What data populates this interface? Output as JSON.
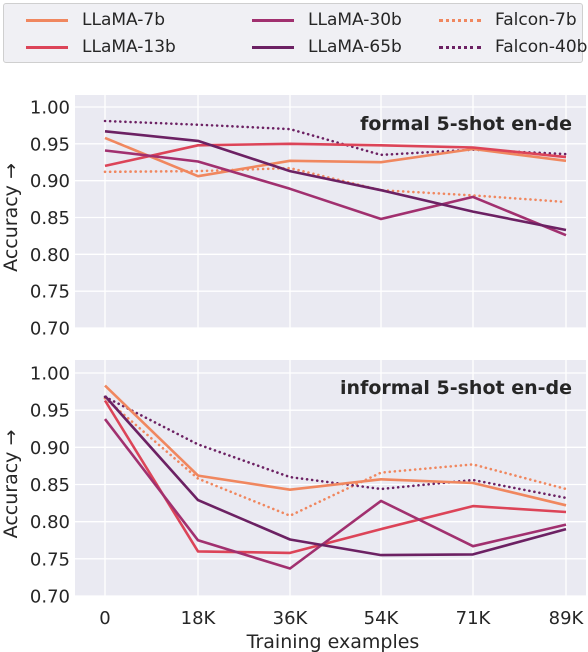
{
  "legend": [
    {
      "name": "LLaMA-7b",
      "color": "#f0875f",
      "dash": "solid"
    },
    {
      "name": "LLaMA-13b",
      "color": "#dc4458",
      "dash": "solid"
    },
    {
      "name": "LLaMA-30b",
      "color": "#a1306f",
      "dash": "solid"
    },
    {
      "name": "LLaMA-65b",
      "color": "#6c2163",
      "dash": "solid"
    },
    {
      "name": "Falcon-7b",
      "color": "#f0875f",
      "dash": "dotted"
    },
    {
      "name": "Falcon-40b",
      "color": "#6c2163",
      "dash": "dotted"
    }
  ],
  "chart_data": [
    {
      "type": "line",
      "title": "formal 5-shot en-de",
      "ylabel": "Accuracy →",
      "xlabel": "",
      "ylim": [
        0.7,
        1.0
      ],
      "yticks": [
        "0.70",
        "0.75",
        "0.80",
        "0.85",
        "0.90",
        "0.95",
        "1.00"
      ],
      "categories": [
        "0",
        "18K",
        "36K",
        "54K",
        "71K",
        "89K"
      ],
      "grid": true,
      "series": [
        {
          "name": "LLaMA-7b",
          "values": [
            0.958,
            0.906,
            0.927,
            0.925,
            0.943,
            0.927
          ]
        },
        {
          "name": "LLaMA-13b",
          "values": [
            0.92,
            0.948,
            0.95,
            0.948,
            0.945,
            0.932
          ]
        },
        {
          "name": "LLaMA-30b",
          "values": [
            0.941,
            0.926,
            0.889,
            0.848,
            0.878,
            0.826
          ]
        },
        {
          "name": "LLaMA-65b",
          "values": [
            0.967,
            0.954,
            0.913,
            0.887,
            0.858,
            0.833
          ]
        },
        {
          "name": "Falcon-7b",
          "values": [
            0.912,
            0.913,
            0.917,
            0.887,
            0.88,
            0.871
          ]
        },
        {
          "name": "Falcon-40b",
          "values": [
            0.981,
            0.976,
            0.97,
            0.935,
            0.942,
            0.936
          ]
        }
      ]
    },
    {
      "type": "line",
      "title": "informal 5-shot en-de",
      "ylabel": "Accuracy →",
      "xlabel": "Training examples",
      "ylim": [
        0.7,
        1.0
      ],
      "yticks": [
        "0.70",
        "0.75",
        "0.80",
        "0.85",
        "0.90",
        "0.95",
        "1.00"
      ],
      "categories": [
        "0",
        "18K",
        "36K",
        "54K",
        "71K",
        "89K"
      ],
      "grid": true,
      "series": [
        {
          "name": "LLaMA-7b",
          "values": [
            0.983,
            0.862,
            0.843,
            0.857,
            0.852,
            0.822
          ]
        },
        {
          "name": "LLaMA-13b",
          "values": [
            0.963,
            0.76,
            0.758,
            0.79,
            0.821,
            0.813
          ]
        },
        {
          "name": "LLaMA-30b",
          "values": [
            0.938,
            0.775,
            0.737,
            0.828,
            0.767,
            0.796
          ]
        },
        {
          "name": "LLaMA-65b",
          "values": [
            0.969,
            0.829,
            0.776,
            0.755,
            0.756,
            0.79
          ]
        },
        {
          "name": "Falcon-7b",
          "values": [
            0.966,
            0.858,
            0.808,
            0.866,
            0.877,
            0.844
          ]
        },
        {
          "name": "Falcon-40b",
          "values": [
            0.968,
            0.904,
            0.86,
            0.844,
            0.856,
            0.832
          ]
        }
      ]
    }
  ]
}
